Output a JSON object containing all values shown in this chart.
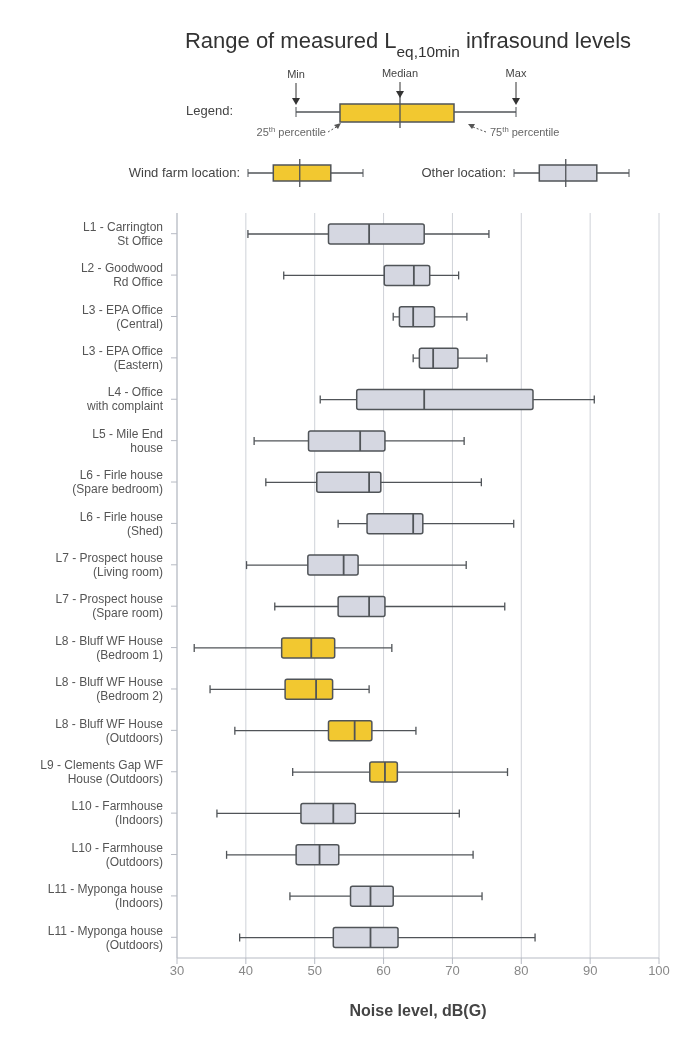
{
  "chart_data": {
    "type": "box",
    "orientation": "horizontal",
    "title": "Range of measured L$_{eq,10min}$ infrasound levels",
    "xlabel": "Noise level, dB(G)",
    "categories": [
      "L1 - Carrington St Office",
      "L2 - Goodwood Rd Office",
      "L3 - EPA Office (Central)",
      "L3 - EPA Office (Eastern)",
      "L4 - Office with complaint",
      "L5 - Mile End house",
      "L6 - Firle house (Spare bedroom)",
      "L6 - Firle house (Shed)",
      "L7 - Prospect house (Living room)",
      "L7 - Prospect house (Spare room)",
      "L8 - Bluff WF House (Bedroom 1)",
      "L8 - Bluff WF House (Bedroom 2)",
      "L8 - Bluff WF House (Outdoors)",
      "L9 - Clements Gap WF House (Outdoors)",
      "L10 - Farmhouse (Indoors)",
      "L10 - Farmhouse (Outdoors)",
      "L11 - Myponga house (Indoors)",
      "L11 - Myponga house (Outdoors)"
    ],
    "series": [
      {
        "name": "Wind farm location:",
        "color": "#f2c830",
        "boxes": [
          null,
          null,
          null,
          null,
          null,
          null,
          null,
          null,
          null,
          null,
          {
            "low": 32.5,
            "q1": 45.2,
            "median": 49.5,
            "q3": 52.9,
            "high": 61.2
          },
          {
            "low": 34.8,
            "q1": 45.7,
            "median": 50.2,
            "q3": 52.6,
            "high": 57.9
          },
          {
            "low": 38.4,
            "q1": 52.0,
            "median": 55.8,
            "q3": 58.3,
            "high": 64.7
          },
          {
            "low": 46.8,
            "q1": 58.0,
            "median": 60.2,
            "q3": 62.0,
            "high": 78.0
          },
          null,
          null,
          null,
          null
        ]
      },
      {
        "name": "Other location:",
        "color": "#d5d7e1",
        "boxes": [
          {
            "low": 40.3,
            "q1": 52.0,
            "median": 57.9,
            "q3": 65.9,
            "high": 75.3
          },
          {
            "low": 45.5,
            "q1": 60.1,
            "median": 64.4,
            "q3": 66.7,
            "high": 70.9
          },
          {
            "low": 61.4,
            "q1": 62.3,
            "median": 64.3,
            "q3": 67.4,
            "high": 72.1
          },
          {
            "low": 64.3,
            "q1": 65.2,
            "median": 67.2,
            "q3": 70.8,
            "high": 75.0
          },
          {
            "low": 50.8,
            "q1": 56.1,
            "median": 65.9,
            "q3": 81.7,
            "high": 90.6
          },
          {
            "low": 41.2,
            "q1": 49.1,
            "median": 56.6,
            "q3": 60.2,
            "high": 71.7
          },
          {
            "low": 42.9,
            "q1": 50.3,
            "median": 57.9,
            "q3": 59.6,
            "high": 74.2
          },
          {
            "low": 53.4,
            "q1": 57.6,
            "median": 64.3,
            "q3": 65.7,
            "high": 78.9
          },
          {
            "low": 40.1,
            "q1": 49.0,
            "median": 54.2,
            "q3": 56.3,
            "high": 72.0
          },
          {
            "low": 44.2,
            "q1": 53.4,
            "median": 57.9,
            "q3": 60.2,
            "high": 77.6
          },
          null,
          null,
          null,
          null,
          {
            "low": 35.8,
            "q1": 48.0,
            "median": 52.7,
            "q3": 55.9,
            "high": 71.0
          },
          {
            "low": 37.2,
            "q1": 47.3,
            "median": 50.7,
            "q3": 53.5,
            "high": 73.0
          },
          {
            "low": 46.4,
            "q1": 55.2,
            "median": 58.1,
            "q3": 61.4,
            "high": 74.3
          },
          {
            "low": 39.1,
            "q1": 52.7,
            "median": 58.1,
            "q3": 62.1,
            "high": 82.0
          }
        ]
      }
    ],
    "xlim": [
      30,
      100
    ],
    "xticks": [
      30,
      40,
      50,
      60,
      70,
      80,
      90,
      100
    ],
    "grid": "x",
    "legend": "top",
    "annotations": [
      "Legend:",
      "Min",
      "Median",
      "Max",
      "25$^{th}$ percentile",
      "75$^{th}$ percentile"
    ]
  }
}
